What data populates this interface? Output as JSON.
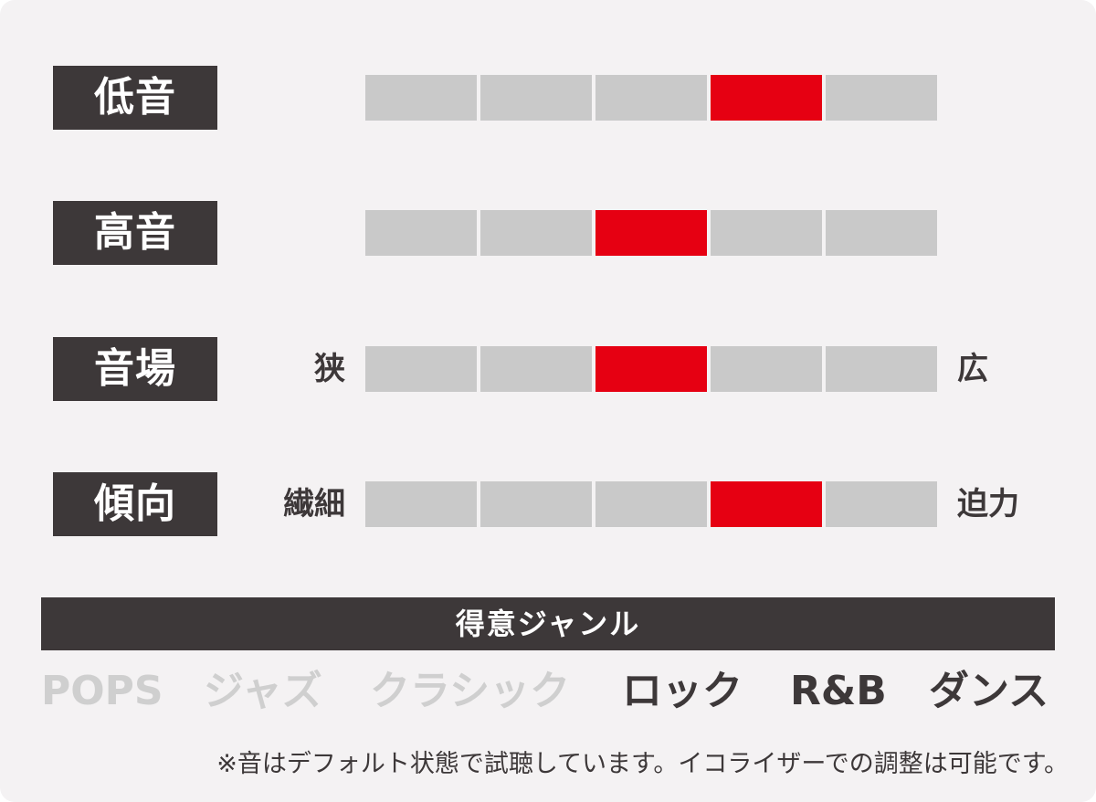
{
  "colors": {
    "background": "#f4f2f3",
    "label_bg": "#3d3839",
    "text_dark": "#3d3839",
    "segment_off": "#c9c9c9",
    "segment_on": "#e60012",
    "genre_inactive": "#cfcfcf",
    "genre_active": "#3d3839"
  },
  "rows": [
    {
      "label": "低音",
      "left": "",
      "right": "",
      "level": 4,
      "max": 5
    },
    {
      "label": "高音",
      "left": "",
      "right": "",
      "level": 3,
      "max": 5
    },
    {
      "label": "音場",
      "left": "狭",
      "right": "広",
      "level": 3,
      "max": 5
    },
    {
      "label": "傾向",
      "left": "繊細",
      "right": "迫力",
      "level": 4,
      "max": 5
    }
  ],
  "genre_header": "得意ジャンル",
  "genres": [
    {
      "label": "POPS",
      "active": false
    },
    {
      "label": "ジャズ",
      "active": false
    },
    {
      "label": "クラシック",
      "active": false
    },
    {
      "label": "ロック",
      "active": true
    },
    {
      "label": "R&B",
      "active": true
    },
    {
      "label": "ダンス",
      "active": true
    }
  ],
  "note": "※音はデフォルト状態で試聴しています。イコライザーでの調整は可能です。"
}
